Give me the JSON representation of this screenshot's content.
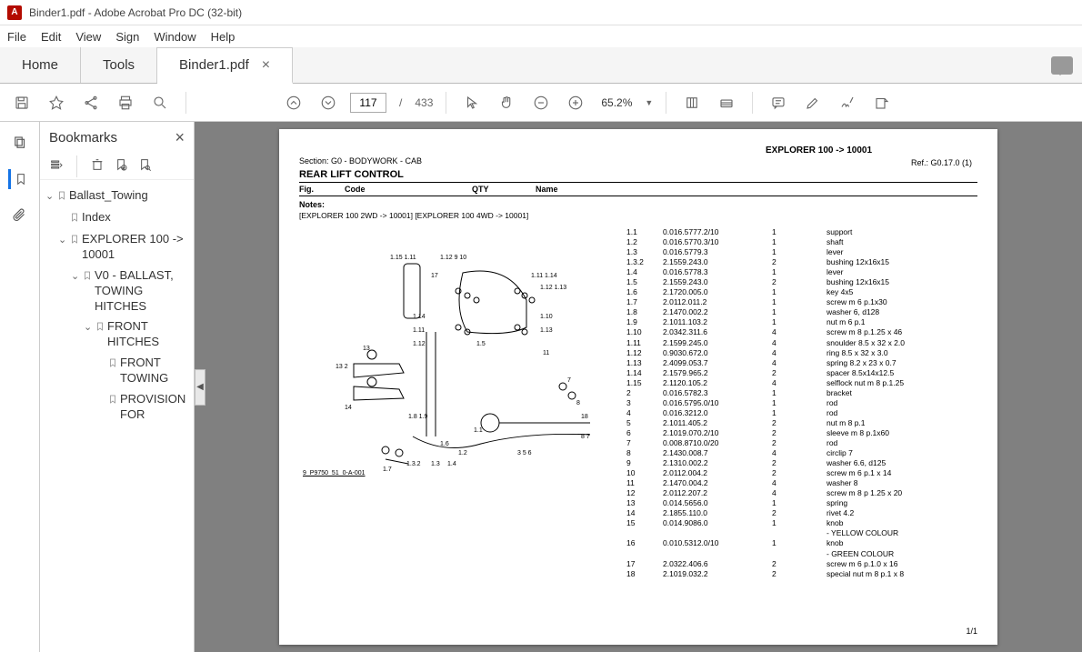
{
  "window": {
    "title": "Binder1.pdf - Adobe Acrobat Pro DC (32-bit)"
  },
  "menu": {
    "file": "File",
    "edit": "Edit",
    "view": "View",
    "sign": "Sign",
    "window": "Window",
    "help": "Help"
  },
  "tabs": {
    "home": "Home",
    "tools": "Tools",
    "doc": "Binder1.pdf"
  },
  "toolbar": {
    "page": "117",
    "pages": "433",
    "zoom": "65.2%"
  },
  "bookmarks": {
    "title": "Bookmarks",
    "items": {
      "ballast": "Ballast_Towing",
      "index": "Index",
      "explorer": "EXPLORER 100 -> 10001",
      "v0": "V0 - BALLAST, TOWING HITCHES",
      "front": "FRONT HITCHES",
      "fronttowing": "FRONT TOWING",
      "provision": "PROVISION FOR"
    }
  },
  "doc": {
    "headerTitle": "EXPLORER 100 -> 10001",
    "section": "Section: G0 - BODYWORK - CAB",
    "ref": "Ref.: G0.17.0 (1)",
    "mainTitle": "REAR LIFT CONTROL",
    "cols": {
      "fig": "Fig.",
      "code": "Code",
      "qty": "QTY",
      "name": "Name"
    },
    "notes": "Notes:",
    "noteText": "[EXPLORER 100 2WD -> 10001]    [EXPLORER 100 4WD -> 10001]",
    "diagLabel": "9_P9750_51_0-A-001",
    "parts": [
      {
        "fig": "1.1",
        "code": "0.016.5777.2/10",
        "qty": "1",
        "name": "support"
      },
      {
        "fig": "1.2",
        "code": "0.016.5770.3/10",
        "qty": "1",
        "name": "shaft"
      },
      {
        "fig": "1.3",
        "code": "0.016.5779.3",
        "qty": "1",
        "name": "lever"
      },
      {
        "fig": "1.3.2",
        "code": "2.1559.243.0",
        "qty": "2",
        "name": "bushing 12x16x15"
      },
      {
        "fig": "1.4",
        "code": "0.016.5778.3",
        "qty": "1",
        "name": "lever"
      },
      {
        "fig": "1.5",
        "code": "2.1559.243.0",
        "qty": "2",
        "name": "bushing 12x16x15"
      },
      {
        "fig": "1.6",
        "code": "2.1720.005.0",
        "qty": "1",
        "name": "key 4x5"
      },
      {
        "fig": "1.7",
        "code": "2.0112.011.2",
        "qty": "1",
        "name": "screw m 6 p.1x30"
      },
      {
        "fig": "1.8",
        "code": "2.1470.002.2",
        "qty": "1",
        "name": "washer 6, d128"
      },
      {
        "fig": "1.9",
        "code": "2.1011.103.2",
        "qty": "1",
        "name": "nut m 6 p.1"
      },
      {
        "fig": "1.10",
        "code": "2.0342.311.6",
        "qty": "4",
        "name": "screw m 8 p.1.25 x 46"
      },
      {
        "fig": "1.11",
        "code": "2.1599.245.0",
        "qty": "4",
        "name": "snoulder 8.5 x 32 x 2.0"
      },
      {
        "fig": "1.12",
        "code": "0.9030.672.0",
        "qty": "4",
        "name": "ring 8.5 x 32 x 3.0"
      },
      {
        "fig": "1.13",
        "code": "2.4099.053.7",
        "qty": "4",
        "name": "spring 8.2 x 23 x 0.7"
      },
      {
        "fig": "1.14",
        "code": "2.1579.965.2",
        "qty": "2",
        "name": "spacer 8.5x14x12.5"
      },
      {
        "fig": "1.15",
        "code": "2.1120.105.2",
        "qty": "4",
        "name": "selflock nut m 8 p.1.25"
      },
      {
        "fig": "2",
        "code": "0.016.5782.3",
        "qty": "1",
        "name": "bracket"
      },
      {
        "fig": "3",
        "code": "0.016.5795.0/10",
        "qty": "1",
        "name": "rod"
      },
      {
        "fig": "4",
        "code": "0.016.3212.0",
        "qty": "1",
        "name": "rod"
      },
      {
        "fig": "5",
        "code": "2.1011.405.2",
        "qty": "2",
        "name": "nut m 8 p.1"
      },
      {
        "fig": "6",
        "code": "2.1019.070.2/10",
        "qty": "2",
        "name": "sleeve m 8 p.1x60"
      },
      {
        "fig": "7",
        "code": "0.008.8710.0/20",
        "qty": "2",
        "name": "rod"
      },
      {
        "fig": "8",
        "code": "2.1430.008.7",
        "qty": "4",
        "name": "circlip 7"
      },
      {
        "fig": "9",
        "code": "2.1310.002.2",
        "qty": "2",
        "name": "washer 6.6, d125"
      },
      {
        "fig": "10",
        "code": "2.0112.004.2",
        "qty": "2",
        "name": "screw m 6 p.1 x 14"
      },
      {
        "fig": "11",
        "code": "2.1470.004.2",
        "qty": "4",
        "name": "washer 8"
      },
      {
        "fig": "12",
        "code": "2.0112.207.2",
        "qty": "4",
        "name": "screw m 8 p 1.25 x 20"
      },
      {
        "fig": "13",
        "code": "0.014.5656.0",
        "qty": "1",
        "name": "spring"
      },
      {
        "fig": "14",
        "code": "2.1855.110.0",
        "qty": "2",
        "name": "rivet 4.2"
      },
      {
        "fig": "15",
        "code": "0.014.9086.0",
        "qty": "1",
        "name": "knob"
      },
      {
        "fig": "",
        "code": "",
        "qty": "",
        "name": "- YELLOW COLOUR"
      },
      {
        "fig": "16",
        "code": "0.010.5312.0/10",
        "qty": "1",
        "name": "knob"
      },
      {
        "fig": "",
        "code": "",
        "qty": "",
        "name": "- GREEN COLOUR"
      },
      {
        "fig": "17",
        "code": "2.0322.406.6",
        "qty": "2",
        "name": "screw m 6 p.1.0 x 16"
      },
      {
        "fig": "18",
        "code": "2.1019.032.2",
        "qty": "2",
        "name": "special nut m 8 p.1 x 8"
      }
    ],
    "pageNum": "1/1"
  }
}
